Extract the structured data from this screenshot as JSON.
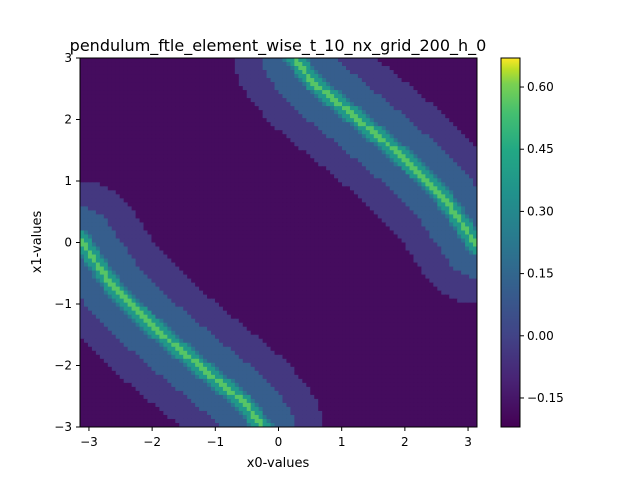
{
  "chart_data": {
    "type": "heatmap",
    "title": "pendulum_ftle_element_wise_t_10_nx_grid_200_h_0",
    "xlabel": "x0-values",
    "ylabel": "x1-values",
    "xlim": [
      -3.14159,
      3.14159
    ],
    "ylim": [
      -3,
      3
    ],
    "xticks": [
      -3,
      -2,
      -1,
      0,
      1,
      2,
      3
    ],
    "yticks": [
      -3,
      -2,
      -1,
      0,
      1,
      2,
      3
    ],
    "xtick_labels": [
      "−3",
      "−2",
      "−1",
      "0",
      "1",
      "2",
      "3"
    ],
    "ytick_labels": [
      "−3",
      "−2",
      "−1",
      "0",
      "1",
      "2",
      "3"
    ],
    "colormap": "viridis",
    "colorbar": {
      "range": [
        -0.22,
        0.67
      ],
      "ticks": [
        -0.15,
        0.0,
        0.15,
        0.3,
        0.45,
        0.6
      ],
      "tick_labels": [
        "−0.15",
        "0.00",
        "0.15",
        "0.30",
        "0.45",
        "0.60"
      ]
    },
    "contour_levels": [
      -0.22,
      -0.15,
      -0.075,
      0.0,
      0.075,
      0.15,
      0.3,
      0.45,
      0.67
    ],
    "features": {
      "ridges": [
        {
          "points": [
            [
              -3.14,
              0.05
            ],
            [
              -2.6,
              -0.75
            ],
            [
              -1.9,
              -1.45
            ],
            [
              -1.2,
              -2.05
            ],
            [
              -0.55,
              -2.6
            ],
            [
              -0.25,
              -3.0
            ]
          ],
          "peak": 0.64
        },
        {
          "points": [
            [
              0.25,
              3.0
            ],
            [
              0.55,
              2.6
            ],
            [
              1.2,
              2.05
            ],
            [
              1.9,
              1.45
            ],
            [
              2.6,
              0.75
            ],
            [
              3.14,
              -0.05
            ]
          ],
          "peak": 0.64
        }
      ],
      "band_half_width_peak": 0.16,
      "band_half_width_mid": 0.52,
      "band_half_width_low": 0.95,
      "center_region_value": -0.19,
      "band_low_value": -0.04,
      "band_mid_value": 0.1,
      "band_peak_value": 0.45
    }
  }
}
